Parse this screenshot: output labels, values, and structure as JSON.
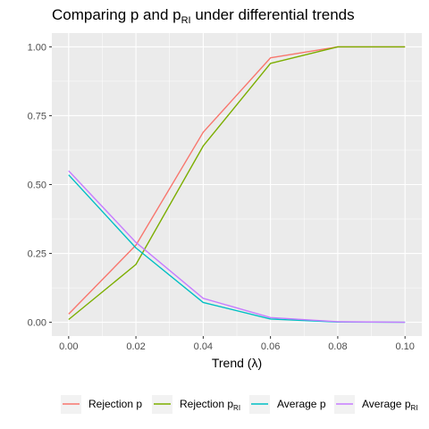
{
  "chart_data": {
    "type": "line",
    "title": "Comparing p and p_RI under differential trends",
    "title_main": "Comparing p and p",
    "title_sub": "RI",
    "title_tail": " under differential trends",
    "xlabel": "Trend (λ)",
    "ylabel": "",
    "x": [
      0.0,
      0.02,
      0.04,
      0.06,
      0.08,
      0.1
    ],
    "x_tick_labels": [
      "0.00",
      "0.02",
      "0.04",
      "0.06",
      "0.08",
      "0.10"
    ],
    "y_tick_labels": [
      "0.00",
      "0.25",
      "0.50",
      "0.75",
      "1.00"
    ],
    "y_ticks": [
      0,
      0.25,
      0.5,
      0.75,
      1.0
    ],
    "xlim": [
      -0.005,
      0.105
    ],
    "ylim": [
      -0.05,
      1.05
    ],
    "grid": true,
    "legend_position": "bottom",
    "series": [
      {
        "name": "Rejection p",
        "name_main": "Rejection p",
        "name_sub": "",
        "color": "#F8766D",
        "values": [
          0.03,
          0.28,
          0.69,
          0.96,
          1.0,
          1.0
        ]
      },
      {
        "name": "Rejection p_RI",
        "name_main": "Rejection p",
        "name_sub": "RI",
        "color": "#7CAE00",
        "values": [
          0.01,
          0.21,
          0.64,
          0.94,
          1.0,
          1.0
        ]
      },
      {
        "name": "Average p",
        "name_main": "Average p",
        "name_sub": "",
        "color": "#00BFC4",
        "values": [
          0.535,
          0.27,
          0.072,
          0.012,
          0.001,
          0.0
        ]
      },
      {
        "name": "Average p_RI",
        "name_main": "Average p",
        "name_sub": "RI",
        "color": "#C77CFF",
        "values": [
          0.55,
          0.29,
          0.087,
          0.017,
          0.002,
          0.0
        ]
      }
    ]
  }
}
